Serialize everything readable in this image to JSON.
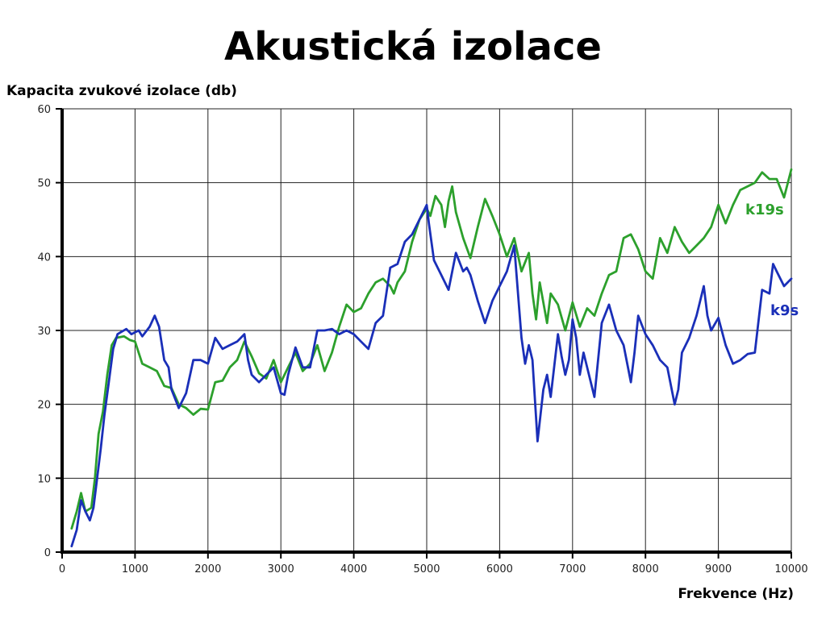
{
  "chart_data": {
    "type": "line",
    "title": "Akustická izolace",
    "ylabel": "Kapacita zvukové izolace (db)",
    "xlabel": "Frekvence (Hz)",
    "xlim": [
      0,
      10000
    ],
    "ylim": [
      0,
      60
    ],
    "xticks": [
      0,
      1000,
      2000,
      3000,
      4000,
      5000,
      6000,
      7000,
      8000,
      9000,
      10000
    ],
    "yticks": [
      0,
      10,
      20,
      30,
      40,
      50,
      60
    ],
    "xtick_labels": [
      "0",
      "1000",
      "2000",
      "3000",
      "4000",
      "5000",
      "6000",
      "7000",
      "8000",
      "9000",
      "10000"
    ],
    "ytick_labels": [
      "0",
      "10",
      "20",
      "30",
      "40",
      "50",
      "60"
    ],
    "grid": true,
    "series": [
      {
        "name": "k19s",
        "color": "#2ca02c",
        "points": [
          [
            130,
            3.2
          ],
          [
            200,
            5.5
          ],
          [
            260,
            8
          ],
          [
            320,
            5.5
          ],
          [
            400,
            6
          ],
          [
            450,
            10
          ],
          [
            500,
            16
          ],
          [
            560,
            19
          ],
          [
            620,
            24
          ],
          [
            680,
            28
          ],
          [
            740,
            29
          ],
          [
            850,
            29.2
          ],
          [
            930,
            28.7
          ],
          [
            1000,
            28.5
          ],
          [
            1100,
            25.5
          ],
          [
            1200,
            25
          ],
          [
            1300,
            24.5
          ],
          [
            1400,
            22.5
          ],
          [
            1500,
            22.2
          ],
          [
            1600,
            20
          ],
          [
            1700,
            19.5
          ],
          [
            1800,
            18.6
          ],
          [
            1900,
            19.4
          ],
          [
            2000,
            19.3
          ],
          [
            2100,
            23
          ],
          [
            2200,
            23.2
          ],
          [
            2300,
            25
          ],
          [
            2400,
            26
          ],
          [
            2500,
            28.5
          ],
          [
            2600,
            26.5
          ],
          [
            2700,
            24.2
          ],
          [
            2800,
            23.5
          ],
          [
            2900,
            26
          ],
          [
            3000,
            23
          ],
          [
            3100,
            25
          ],
          [
            3200,
            27
          ],
          [
            3300,
            24.5
          ],
          [
            3400,
            25.5
          ],
          [
            3500,
            28
          ],
          [
            3600,
            24.5
          ],
          [
            3700,
            27
          ],
          [
            3800,
            30.5
          ],
          [
            3900,
            33.5
          ],
          [
            4000,
            32.5
          ],
          [
            4100,
            33
          ],
          [
            4200,
            35
          ],
          [
            4300,
            36.5
          ],
          [
            4400,
            37
          ],
          [
            4500,
            36
          ],
          [
            4550,
            35
          ],
          [
            4600,
            36.5
          ],
          [
            4700,
            38
          ],
          [
            4800,
            42
          ],
          [
            4900,
            45
          ],
          [
            5000,
            46.5
          ],
          [
            5050,
            45.5
          ],
          [
            5120,
            48.2
          ],
          [
            5200,
            47
          ],
          [
            5250,
            44
          ],
          [
            5300,
            47.5
          ],
          [
            5350,
            49.5
          ],
          [
            5400,
            46
          ],
          [
            5500,
            42.5
          ],
          [
            5600,
            39.8
          ],
          [
            5700,
            44
          ],
          [
            5800,
            47.8
          ],
          [
            5900,
            45.5
          ],
          [
            6000,
            43
          ],
          [
            6100,
            40
          ],
          [
            6200,
            42.5
          ],
          [
            6300,
            38
          ],
          [
            6400,
            40.5
          ],
          [
            6450,
            35
          ],
          [
            6500,
            31.5
          ],
          [
            6550,
            36.5
          ],
          [
            6650,
            31
          ],
          [
            6700,
            35
          ],
          [
            6800,
            33.5
          ],
          [
            6900,
            30
          ],
          [
            7000,
            33.8
          ],
          [
            7100,
            30.5
          ],
          [
            7200,
            33
          ],
          [
            7300,
            32
          ],
          [
            7400,
            35
          ],
          [
            7500,
            37.5
          ],
          [
            7600,
            38
          ],
          [
            7700,
            42.5
          ],
          [
            7800,
            43
          ],
          [
            7900,
            41
          ],
          [
            8000,
            38
          ],
          [
            8100,
            37
          ],
          [
            8200,
            42.5
          ],
          [
            8300,
            40.5
          ],
          [
            8400,
            44
          ],
          [
            8500,
            42
          ],
          [
            8600,
            40.5
          ],
          [
            8700,
            41.5
          ],
          [
            8800,
            42.5
          ],
          [
            8900,
            44
          ],
          [
            9000,
            47
          ],
          [
            9100,
            44.5
          ],
          [
            9200,
            47
          ],
          [
            9300,
            49
          ],
          [
            9400,
            49.5
          ],
          [
            9500,
            50
          ],
          [
            9600,
            51.4
          ],
          [
            9700,
            50.5
          ],
          [
            9800,
            50.5
          ],
          [
            9900,
            48
          ],
          [
            10000,
            51.8
          ]
        ]
      },
      {
        "name": "k9s",
        "color": "#1a2fb8",
        "points": [
          [
            130,
            0.8
          ],
          [
            200,
            3
          ],
          [
            260,
            7
          ],
          [
            320,
            5.5
          ],
          [
            380,
            4.3
          ],
          [
            430,
            6
          ],
          [
            480,
            10
          ],
          [
            530,
            14
          ],
          [
            580,
            18.5
          ],
          [
            640,
            23
          ],
          [
            700,
            27.5
          ],
          [
            760,
            29.5
          ],
          [
            880,
            30.2
          ],
          [
            950,
            29.5
          ],
          [
            1050,
            30
          ],
          [
            1100,
            29.2
          ],
          [
            1200,
            30.5
          ],
          [
            1270,
            32
          ],
          [
            1330,
            30.5
          ],
          [
            1400,
            26
          ],
          [
            1460,
            25
          ],
          [
            1500,
            22
          ],
          [
            1600,
            19.5
          ],
          [
            1700,
            21.5
          ],
          [
            1800,
            26
          ],
          [
            1900,
            26
          ],
          [
            2000,
            25.5
          ],
          [
            2100,
            29
          ],
          [
            2200,
            27.5
          ],
          [
            2300,
            28
          ],
          [
            2400,
            28.5
          ],
          [
            2500,
            29.5
          ],
          [
            2550,
            26
          ],
          [
            2600,
            24
          ],
          [
            2700,
            23
          ],
          [
            2800,
            24
          ],
          [
            2900,
            25
          ],
          [
            3000,
            21.5
          ],
          [
            3050,
            21.3
          ],
          [
            3100,
            24
          ],
          [
            3200,
            27.7
          ],
          [
            3300,
            25
          ],
          [
            3400,
            25
          ],
          [
            3500,
            30
          ],
          [
            3600,
            30
          ],
          [
            3700,
            30.2
          ],
          [
            3800,
            29.5
          ],
          [
            3900,
            30
          ],
          [
            4000,
            29.5
          ],
          [
            4100,
            28.5
          ],
          [
            4200,
            27.5
          ],
          [
            4300,
            31
          ],
          [
            4400,
            32
          ],
          [
            4500,
            38.5
          ],
          [
            4600,
            39
          ],
          [
            4700,
            42
          ],
          [
            4800,
            43
          ],
          [
            4900,
            45
          ],
          [
            5000,
            47
          ],
          [
            5030,
            44.5
          ],
          [
            5100,
            39.5
          ],
          [
            5200,
            37.5
          ],
          [
            5300,
            35.5
          ],
          [
            5400,
            40.5
          ],
          [
            5500,
            38
          ],
          [
            5550,
            38.5
          ],
          [
            5600,
            37.5
          ],
          [
            5700,
            34
          ],
          [
            5800,
            31
          ],
          [
            5900,
            34
          ],
          [
            6000,
            36
          ],
          [
            6100,
            38
          ],
          [
            6200,
            41.5
          ],
          [
            6300,
            29
          ],
          [
            6350,
            25.5
          ],
          [
            6400,
            28
          ],
          [
            6450,
            26
          ],
          [
            6520,
            15
          ],
          [
            6600,
            22
          ],
          [
            6650,
            24
          ],
          [
            6700,
            21
          ],
          [
            6800,
            29.5
          ],
          [
            6850,
            26.5
          ],
          [
            6900,
            24
          ],
          [
            6950,
            26
          ],
          [
            7000,
            31.5
          ],
          [
            7050,
            29
          ],
          [
            7100,
            24
          ],
          [
            7150,
            27
          ],
          [
            7200,
            25
          ],
          [
            7300,
            21
          ],
          [
            7400,
            31
          ],
          [
            7500,
            33.5
          ],
          [
            7600,
            30
          ],
          [
            7700,
            28
          ],
          [
            7800,
            23
          ],
          [
            7850,
            27
          ],
          [
            7900,
            32
          ],
          [
            8000,
            29.5
          ],
          [
            8100,
            28
          ],
          [
            8200,
            26
          ],
          [
            8300,
            25
          ],
          [
            8400,
            20
          ],
          [
            8450,
            22
          ],
          [
            8500,
            27
          ],
          [
            8600,
            29
          ],
          [
            8700,
            32
          ],
          [
            8800,
            36
          ],
          [
            8850,
            32
          ],
          [
            8900,
            30
          ],
          [
            9000,
            31.7
          ],
          [
            9100,
            28
          ],
          [
            9200,
            25.5
          ],
          [
            9300,
            26
          ],
          [
            9400,
            26.8
          ],
          [
            9500,
            27
          ],
          [
            9600,
            35.5
          ],
          [
            9700,
            35
          ],
          [
            9750,
            39
          ],
          [
            9800,
            38
          ],
          [
            9900,
            36
          ],
          [
            10000,
            37
          ]
        ]
      }
    ]
  }
}
